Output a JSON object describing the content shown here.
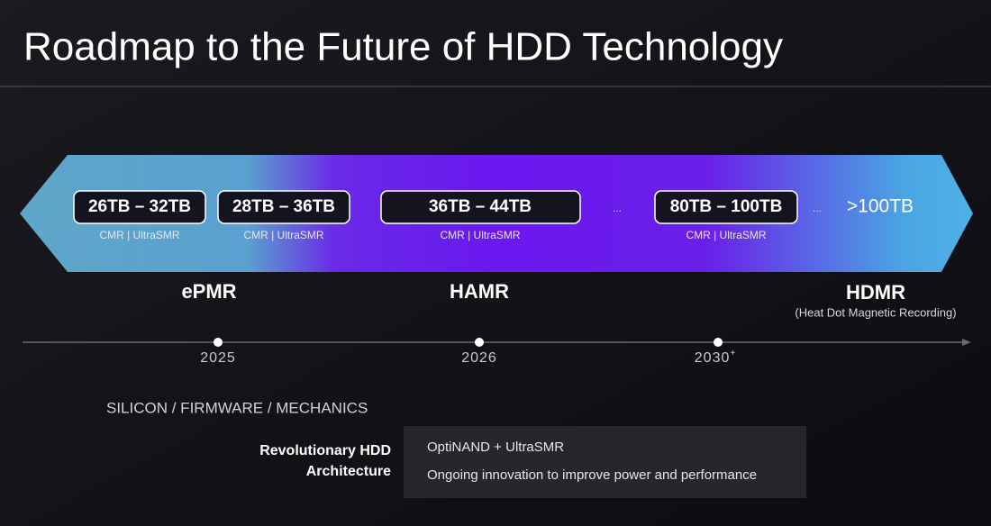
{
  "header": {
    "title": "Roadmap to the Future of HDD Technology"
  },
  "capacities": [
    {
      "label": "26TB – 32TB",
      "sub": "CMR | UltraSMR"
    },
    {
      "label": "28TB – 36TB",
      "sub": "CMR | UltraSMR"
    },
    {
      "label": "36TB – 44TB",
      "sub": "CMR | UltraSMR"
    },
    {
      "label": "80TB – 100TB",
      "sub": "CMR | UltraSMR"
    },
    {
      "label": ">100TB"
    }
  ],
  "ellipses": [
    "...",
    "..."
  ],
  "technologies": [
    {
      "name": "ePMR"
    },
    {
      "name": "HAMR"
    },
    {
      "name": "HDMR",
      "note": "(Heat Dot Magnetic Recording)"
    }
  ],
  "timeline": [
    {
      "year": "2025"
    },
    {
      "year": "2026"
    },
    {
      "year": "2030",
      "suffix": "+"
    }
  ],
  "foundation": {
    "heading": "SILICON / FIRMWARE / MECHANICS",
    "label": [
      "Revolutionary HDD",
      "Architecture"
    ],
    "items": [
      "OptiNAND + UltraSMR",
      "Ongoing innovation to improve power and performance"
    ]
  }
}
